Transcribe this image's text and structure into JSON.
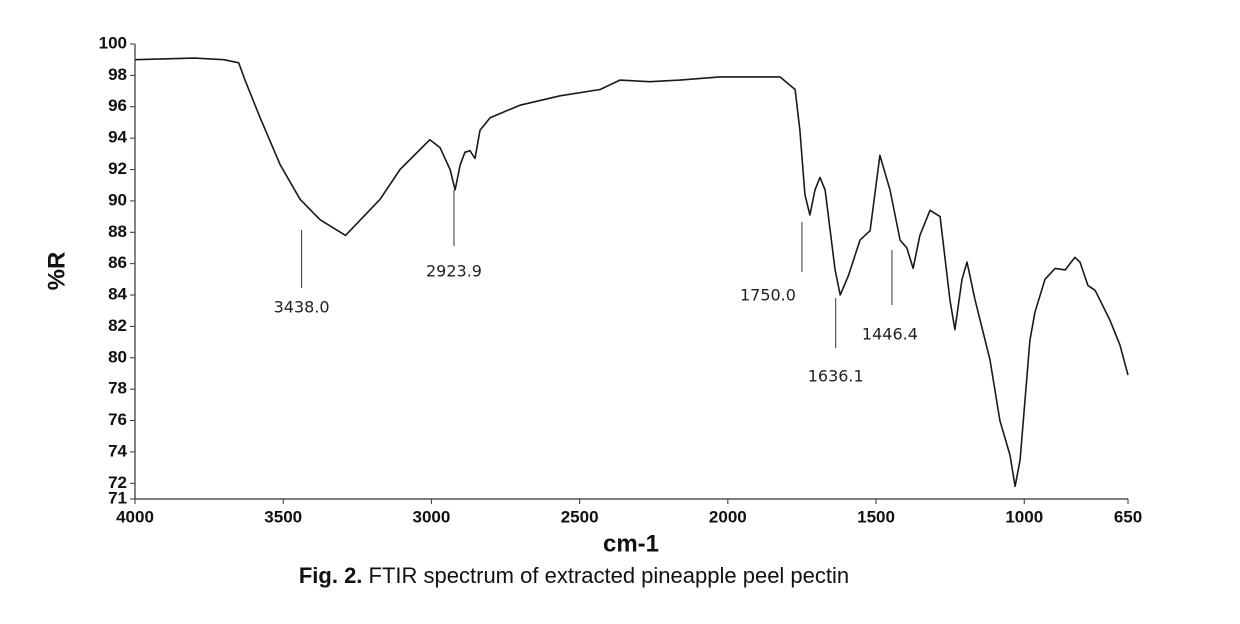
{
  "chart_data": {
    "type": "line",
    "xlabel": "cm-1",
    "ylabel": "%R",
    "caption_label": "Fig. 2.",
    "caption": "FTIR spectrum of extracted pineapple peel pectin",
    "xlim": [
      4000,
      650
    ],
    "xticks": [
      4000,
      3500,
      3000,
      2500,
      2000,
      1500,
      1000,
      650
    ],
    "ylim": [
      71,
      100
    ],
    "yticks": [
      100,
      98,
      96,
      94,
      92,
      90,
      88,
      86,
      84,
      82,
      80,
      78,
      76,
      74,
      72,
      71
    ],
    "grid": false,
    "series": [
      {
        "name": "FTIR spectrum",
        "color": "#1a1a1a",
        "x": [
          4000,
          3800,
          3700,
          3650,
          3629,
          3578,
          3510,
          3443,
          3376,
          3290,
          3173,
          3106,
          3005,
          2971,
          2937,
          2920,
          2903,
          2887,
          2870,
          2853,
          2836,
          2802,
          2701,
          2566,
          2431,
          2364,
          2263,
          2162,
          2027,
          1824,
          1773,
          1757,
          1740,
          1723,
          1706,
          1689,
          1672,
          1638,
          1621,
          1594,
          1554,
          1520,
          1487,
          1453,
          1419,
          1396,
          1375,
          1352,
          1318,
          1284,
          1251,
          1234,
          1210,
          1193,
          1166,
          1116,
          1082,
          1048,
          1031,
          1014,
          981,
          964,
          930,
          896,
          862,
          829,
          812,
          785,
          761,
          745,
          711,
          677,
          650
        ],
        "values": [
          99.0,
          99.1,
          99.0,
          98.8,
          97.7,
          95.3,
          92.3,
          90.1,
          88.8,
          87.8,
          90.1,
          92.0,
          93.9,
          93.4,
          92.0,
          90.7,
          92.3,
          93.1,
          93.2,
          92.7,
          94.5,
          95.3,
          96.1,
          96.7,
          97.1,
          97.7,
          97.6,
          97.7,
          97.9,
          97.9,
          97.1,
          94.5,
          90.4,
          89.1,
          90.7,
          91.5,
          90.7,
          85.6,
          84.0,
          85.2,
          87.5,
          88.1,
          92.9,
          90.7,
          87.5,
          87.0,
          85.7,
          87.8,
          89.4,
          89.0,
          83.7,
          81.8,
          85.0,
          86.1,
          83.7,
          79.9,
          76.0,
          73.8,
          71.8,
          73.5,
          81.1,
          82.9,
          85.0,
          85.7,
          85.6,
          86.4,
          86.1,
          84.6,
          84.3,
          83.7,
          82.4,
          80.8,
          78.9
        ]
      }
    ],
    "annotations": [
      {
        "x": 3438.0,
        "label": "3438.0"
      },
      {
        "x": 2923.9,
        "label": "2923.9"
      },
      {
        "x": 1750.0,
        "label": "1750.0"
      },
      {
        "x": 1636.1,
        "label": "1636.1"
      },
      {
        "x": 1446.4,
        "label": "1446.4"
      }
    ]
  }
}
